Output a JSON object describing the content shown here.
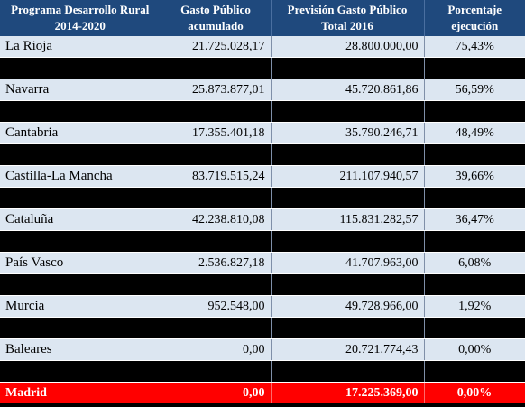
{
  "header": {
    "col1": [
      "Programa Desarrollo Rural",
      "2014-2020"
    ],
    "col2": [
      "Gasto Público",
      "acumulado"
    ],
    "col3": [
      "Previsión Gasto Público",
      "Total 2016"
    ],
    "col4": [
      "Porcentaje",
      "ejecución"
    ]
  },
  "rows": [
    {
      "name": "La Rioja",
      "gasto": "21.725.028,17",
      "prevision": "28.800.000,00",
      "pct": "75,43%",
      "style": "light"
    },
    {
      "name": "",
      "gasto": "",
      "prevision": "",
      "pct": "",
      "style": "dark"
    },
    {
      "name": "Navarra",
      "gasto": "25.873.877,01",
      "prevision": "45.720.861,86",
      "pct": "56,59%",
      "style": "light"
    },
    {
      "name": "",
      "gasto": "",
      "prevision": "",
      "pct": "",
      "style": "dark"
    },
    {
      "name": "Cantabria",
      "gasto": "17.355.401,18",
      "prevision": "35.790.246,71",
      "pct": "48,49%",
      "style": "light"
    },
    {
      "name": "",
      "gasto": "",
      "prevision": "",
      "pct": "",
      "style": "dark"
    },
    {
      "name": "Castilla-La Mancha",
      "gasto": "83.719.515,24",
      "prevision": "211.107.940,57",
      "pct": "39,66%",
      "style": "light"
    },
    {
      "name": "",
      "gasto": "",
      "prevision": "",
      "pct": "",
      "style": "dark"
    },
    {
      "name": "Cataluña",
      "gasto": "42.238.810,08",
      "prevision": "115.831.282,57",
      "pct": "36,47%",
      "style": "light"
    },
    {
      "name": "",
      "gasto": "",
      "prevision": "",
      "pct": "",
      "style": "dark"
    },
    {
      "name": "País Vasco",
      "gasto": "2.536.827,18",
      "prevision": "41.707.963,00",
      "pct": "6,08%",
      "style": "light"
    },
    {
      "name": "",
      "gasto": "",
      "prevision": "",
      "pct": "",
      "style": "dark"
    },
    {
      "name": "Murcia",
      "gasto": "952.548,00",
      "prevision": "49.728.966,00",
      "pct": "1,92%",
      "style": "light"
    },
    {
      "name": "",
      "gasto": "",
      "prevision": "",
      "pct": "",
      "style": "dark"
    },
    {
      "name": "Baleares",
      "gasto": "0,00",
      "prevision": "20.721.774,43",
      "pct": "0,00%",
      "style": "light"
    },
    {
      "name": "",
      "gasto": "",
      "prevision": "",
      "pct": "",
      "style": "dark"
    },
    {
      "name": "Madrid",
      "gasto": "0,00",
      "prevision": "17.225.369,00",
      "pct": "0,00%",
      "style": "highlight"
    }
  ],
  "colors": {
    "header_bg": "#1f497d",
    "header_text": "#ffffff",
    "light_row": "#dce6f1",
    "dark_row": "#000000",
    "highlight_row": "#ff0000"
  }
}
